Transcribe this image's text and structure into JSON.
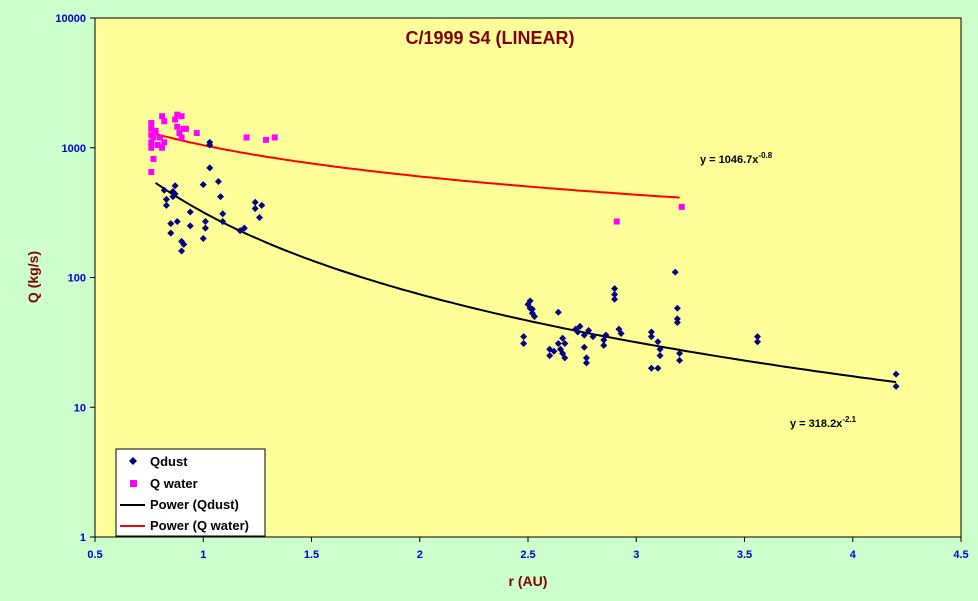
{
  "chart_data": {
    "type": "scatter",
    "title": "C/1999 S4 (LINEAR)",
    "xlabel": "r (AU)",
    "ylabel": "Q (kg/s)",
    "xlim": [
      0.5,
      4.5
    ],
    "ylim": [
      1,
      10000
    ],
    "y_scale": "log",
    "grid": false,
    "legend_position": "bottom-left",
    "x_ticks": [
      "0.5",
      "1",
      "1.5",
      "2",
      "2.5",
      "3",
      "3.5",
      "4",
      "4.5"
    ],
    "y_ticks": [
      "1",
      "10",
      "100",
      "1000",
      "10000"
    ],
    "series": [
      {
        "name": "Qdust",
        "marker": "diamond",
        "color": "#000080",
        "points": [
          [
            0.82,
            470
          ],
          [
            0.83,
            360
          ],
          [
            0.83,
            400
          ],
          [
            0.85,
            220
          ],
          [
            0.85,
            260
          ],
          [
            0.86,
            420
          ],
          [
            0.86,
            460
          ],
          [
            0.87,
            510
          ],
          [
            0.87,
            440
          ],
          [
            0.88,
            270
          ],
          [
            0.9,
            190
          ],
          [
            0.9,
            160
          ],
          [
            0.91,
            180
          ],
          [
            0.94,
            320
          ],
          [
            0.94,
            250
          ],
          [
            1.0,
            520
          ],
          [
            1.0,
            200
          ],
          [
            1.01,
            270
          ],
          [
            1.01,
            240
          ],
          [
            1.03,
            1050
          ],
          [
            1.03,
            1100
          ],
          [
            1.03,
            700
          ],
          [
            1.07,
            550
          ],
          [
            1.08,
            420
          ],
          [
            1.09,
            270
          ],
          [
            1.09,
            310
          ],
          [
            1.17,
            230
          ],
          [
            1.19,
            240
          ],
          [
            1.24,
            380
          ],
          [
            1.24,
            340
          ],
          [
            1.26,
            290
          ],
          [
            1.27,
            360
          ],
          [
            2.48,
            35
          ],
          [
            2.48,
            31
          ],
          [
            2.5,
            62
          ],
          [
            2.51,
            58
          ],
          [
            2.51,
            66
          ],
          [
            2.52,
            53
          ],
          [
            2.52,
            57
          ],
          [
            2.53,
            50
          ],
          [
            2.6,
            28
          ],
          [
            2.6,
            25
          ],
          [
            2.62,
            27
          ],
          [
            2.64,
            54
          ],
          [
            2.64,
            31
          ],
          [
            2.65,
            28
          ],
          [
            2.66,
            34
          ],
          [
            2.66,
            26
          ],
          [
            2.67,
            24
          ],
          [
            2.67,
            31
          ],
          [
            2.72,
            40
          ],
          [
            2.73,
            38
          ],
          [
            2.74,
            42
          ],
          [
            2.76,
            29
          ],
          [
            2.76,
            36
          ],
          [
            2.77,
            24
          ],
          [
            2.77,
            22
          ],
          [
            2.78,
            39
          ],
          [
            2.8,
            35
          ],
          [
            2.85,
            33
          ],
          [
            2.85,
            30
          ],
          [
            2.86,
            36
          ],
          [
            2.9,
            82
          ],
          [
            2.9,
            74
          ],
          [
            2.9,
            68
          ],
          [
            2.92,
            40
          ],
          [
            2.93,
            37
          ],
          [
            3.07,
            38
          ],
          [
            3.07,
            35
          ],
          [
            3.07,
            20
          ],
          [
            3.1,
            20
          ],
          [
            3.1,
            32
          ],
          [
            3.11,
            28
          ],
          [
            3.11,
            25
          ],
          [
            3.18,
            110
          ],
          [
            3.19,
            58
          ],
          [
            3.19,
            48
          ],
          [
            3.19,
            45
          ],
          [
            3.2,
            26
          ],
          [
            3.2,
            23
          ],
          [
            3.56,
            35
          ],
          [
            3.56,
            32
          ],
          [
            4.2,
            18
          ],
          [
            4.2,
            14.5
          ]
        ]
      },
      {
        "name": "Q water",
        "marker": "square",
        "color": "#ff00ff",
        "points": [
          [
            0.76,
            650
          ],
          [
            0.76,
            1000
          ],
          [
            0.76,
            1100
          ],
          [
            0.76,
            1250
          ],
          [
            0.76,
            1400
          ],
          [
            0.76,
            1550
          ],
          [
            0.77,
            820
          ],
          [
            0.77,
            1200
          ],
          [
            0.78,
            1350
          ],
          [
            0.79,
            1050
          ],
          [
            0.8,
            1200
          ],
          [
            0.81,
            1000
          ],
          [
            0.81,
            1750
          ],
          [
            0.82,
            1600
          ],
          [
            0.82,
            1100
          ],
          [
            0.87,
            1650
          ],
          [
            0.88,
            1800
          ],
          [
            0.88,
            1450
          ],
          [
            0.89,
            1300
          ],
          [
            0.9,
            1200
          ],
          [
            0.9,
            1750
          ],
          [
            0.91,
            1400
          ],
          [
            0.92,
            1400
          ],
          [
            0.97,
            1300
          ],
          [
            1.2,
            1200
          ],
          [
            1.29,
            1150
          ],
          [
            1.33,
            1200
          ],
          [
            2.91,
            270
          ],
          [
            3.21,
            350
          ]
        ]
      }
    ],
    "trendlines": [
      {
        "name": "Power (Qdust)",
        "color": "#000000",
        "coefficient": 318.2,
        "exponent": -2.1,
        "x_range": [
          0.78,
          4.2
        ],
        "equation_label": {
          "base": "y = 318.2x",
          "exponent": "-2.1"
        }
      },
      {
        "name": "Power (Q water)",
        "color": "#ff0000",
        "coefficient": 1046.7,
        "exponent": -0.8,
        "x_range": [
          0.78,
          3.2
        ],
        "equation_label": {
          "base": "y = 1046.7x",
          "exponent": "-0.8"
        }
      }
    ]
  }
}
